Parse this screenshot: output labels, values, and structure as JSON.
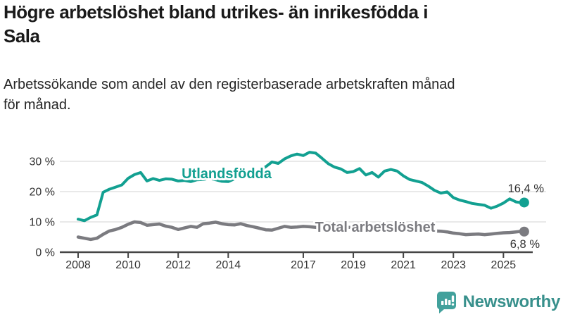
{
  "header": {
    "title": "Högre arbetslöshet bland utrikes- än inrikesfödda i\nSala",
    "subtitle": "Arbetssökande som andel av den registerbaserade arbetskraften månad\nför månad."
  },
  "chart_data": {
    "type": "line",
    "title": "Högre arbetslöshet bland utrikes- än inrikesfödda i Sala",
    "subtitle": "Arbetssökande som andel av den registerbaserade arbetskraften månad för månad.",
    "unit": "%",
    "grid": true,
    "legend_position": "inline-labels",
    "ylim": [
      0,
      34
    ],
    "ytick_labels": [
      "0 %",
      "10 %",
      "20 %",
      "30 %"
    ],
    "xtick_labels": [
      "2008",
      "2010",
      "2012",
      "2014",
      "2017",
      "2019",
      "2021",
      "2023",
      "2025"
    ],
    "x": [
      2008.0,
      2008.25,
      2008.5,
      2008.75,
      2009.0,
      2009.25,
      2009.5,
      2009.75,
      2010.0,
      2010.25,
      2010.5,
      2010.75,
      2011.0,
      2011.25,
      2011.5,
      2011.75,
      2012.0,
      2012.25,
      2012.5,
      2012.75,
      2013.0,
      2013.25,
      2013.5,
      2013.75,
      2014.0,
      2014.25,
      2014.5,
      2014.75,
      2015.0,
      2015.25,
      2015.5,
      2015.75,
      2016.0,
      2016.25,
      2016.5,
      2016.75,
      2017.0,
      2017.25,
      2017.5,
      2017.75,
      2018.0,
      2018.25,
      2018.5,
      2018.75,
      2019.0,
      2019.25,
      2019.5,
      2019.75,
      2020.0,
      2020.25,
      2020.5,
      2020.75,
      2021.0,
      2021.25,
      2021.5,
      2021.75,
      2022.0,
      2022.25,
      2022.5,
      2022.75,
      2023.0,
      2023.25,
      2023.5,
      2023.75,
      2024.0,
      2024.25,
      2024.5,
      2024.75,
      2025.0,
      2025.25,
      2025.5,
      2025.75,
      2025.83
    ],
    "series": [
      {
        "name": "Utlandsfödda",
        "color": "#12a091",
        "end_label": "16,4 %",
        "end_value": 16.4,
        "values": [
          10.9,
          10.4,
          11.5,
          12.3,
          19.8,
          20.8,
          21.5,
          22.2,
          24.4,
          25.6,
          26.3,
          23.5,
          24.3,
          23.7,
          24.2,
          24.1,
          23.5,
          23.7,
          23.3,
          23.9,
          24.0,
          24.4,
          23.9,
          23.4,
          23.3,
          24.2,
          24.8,
          25.3,
          26.0,
          27.0,
          28.2,
          29.8,
          29.3,
          30.8,
          31.8,
          32.4,
          31.9,
          33.0,
          32.7,
          31.0,
          29.2,
          28.1,
          27.5,
          26.3,
          26.6,
          27.6,
          25.5,
          26.3,
          24.8,
          26.8,
          27.3,
          26.8,
          25.2,
          24.0,
          23.5,
          23.0,
          21.8,
          20.4,
          19.5,
          19.9,
          18.0,
          17.2,
          16.7,
          16.1,
          15.8,
          15.5,
          14.5,
          15.2,
          16.2,
          17.6,
          16.6,
          16.3,
          16.4
        ]
      },
      {
        "name": "Total arbetslöshet",
        "color": "#7b7b80",
        "end_label": "6,8 %",
        "end_value": 6.8,
        "values": [
          5.0,
          4.6,
          4.2,
          4.6,
          5.9,
          7.0,
          7.5,
          8.2,
          9.2,
          10.0,
          9.8,
          8.9,
          9.1,
          9.3,
          8.6,
          8.2,
          7.5,
          8.0,
          8.5,
          8.2,
          9.4,
          9.6,
          9.9,
          9.4,
          9.1,
          9.0,
          9.4,
          8.8,
          8.4,
          7.9,
          7.4,
          7.3,
          7.9,
          8.5,
          8.2,
          8.3,
          8.5,
          8.4,
          8.2,
          8.1,
          8.3,
          8.1,
          8.0,
          8.2,
          8.2,
          8.0,
          7.9,
          8.0,
          8.1,
          8.8,
          8.6,
          8.4,
          8.2,
          7.9,
          7.6,
          7.4,
          7.2,
          7.0,
          6.9,
          6.7,
          6.3,
          6.1,
          5.8,
          5.9,
          6.0,
          5.8,
          6.0,
          6.2,
          6.4,
          6.5,
          6.7,
          6.9,
          6.8
        ]
      }
    ]
  },
  "colors": {
    "accent_teal": "#12a091",
    "series_gray": "#7b7b80",
    "grid": "#dcdcdc",
    "axis": "#454545",
    "tick_text": "#333333",
    "logo_bubble": "#42a19c",
    "logo_text": "#38908c"
  },
  "footer": {
    "brand": "Newsworthy"
  }
}
